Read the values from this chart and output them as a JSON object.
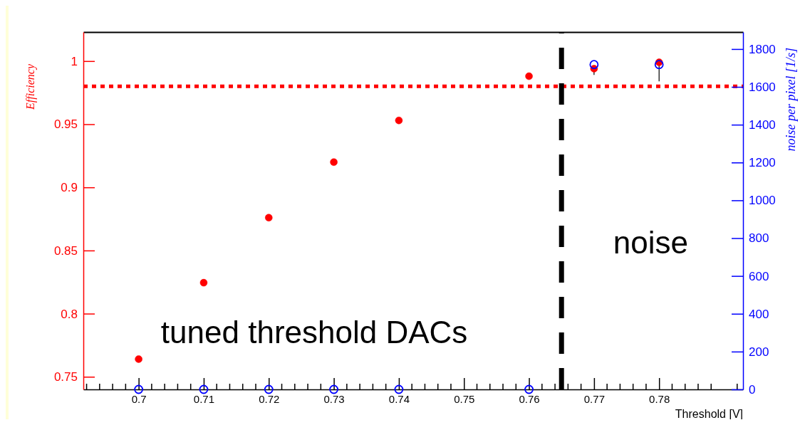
{
  "chart_data": {
    "type": "scatter",
    "xlabel": "Threshold [V]",
    "ylabel": "Efficiency",
    "y2label": "noise per pixel [1/s]",
    "x": [
      0.7,
      0.71,
      0.72,
      0.73,
      0.74,
      0.76,
      0.77,
      0.78
    ],
    "series": [
      {
        "color": "#ff0000",
        "values": [
          0.764,
          0.8245,
          0.876,
          0.92,
          0.953,
          0.988,
          0.994,
          0.999
        ],
        "errors": [
          null,
          null,
          null,
          null,
          null,
          null,
          [
            0.989,
            0.994
          ],
          [
            0.984,
            0.999
          ]
        ]
      },
      {
        "color": "#0000ff",
        "axis": "y2",
        "values": [
          0,
          0,
          0,
          0,
          0,
          0,
          1718,
          1718
        ]
      }
    ],
    "xlim": [
      0.6915,
      0.7929
    ],
    "xticks": [
      0.7,
      0.71,
      0.72,
      0.73,
      0.74,
      0.75,
      0.76,
      0.77,
      0.78
    ],
    "ylim": [
      0.74,
      1.023
    ],
    "yticks": [
      0.75,
      0.8,
      0.85,
      0.9,
      0.95,
      1
    ],
    "y2lim": [
      0,
      1890
    ],
    "y2ticks": [
      0,
      200,
      400,
      600,
      800,
      1000,
      1200,
      1400,
      1600,
      1800
    ],
    "ref_lines": [
      {
        "axis": "y",
        "value": 0.98,
        "color": "#ff0000",
        "line_style": "dotted"
      },
      {
        "axis": "x",
        "value": 0.765,
        "color": "#000000",
        "line_style": "dashed"
      }
    ],
    "annotations": [
      "tuned threshold DACs",
      "noise"
    ],
    "marker": "circle",
    "grid": false,
    "legend": false
  }
}
